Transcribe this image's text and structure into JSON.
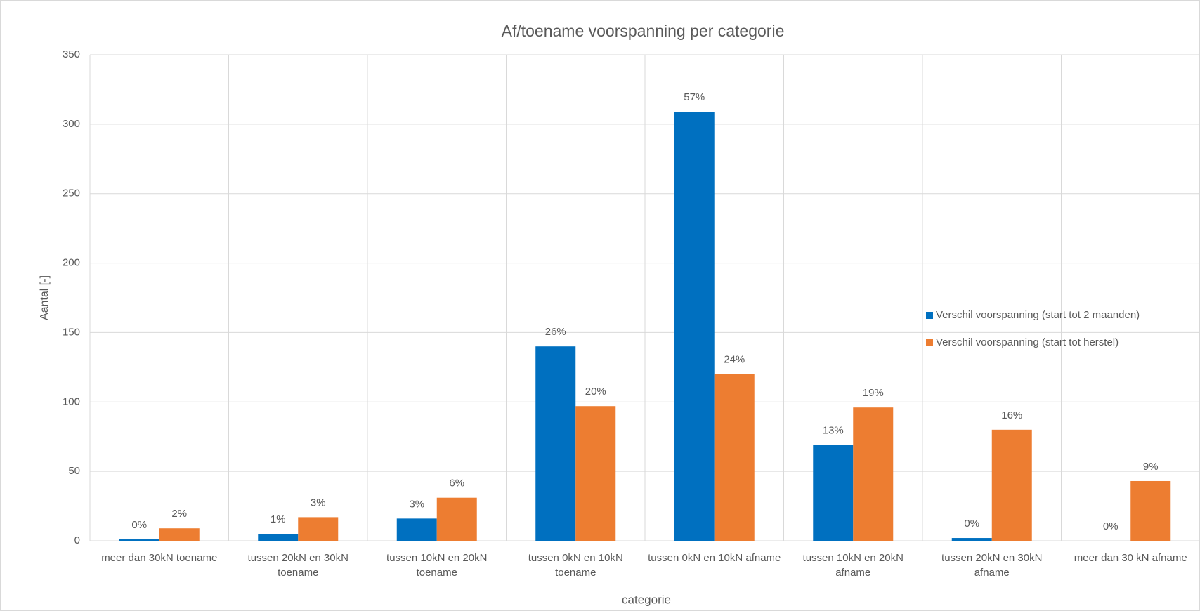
{
  "chart_data": {
    "type": "bar",
    "title": "Af/toename voorspanning per categorie",
    "x_label": "categorie",
    "y_label": "Aantal [-]",
    "categories": [
      "meer dan 30kN toename",
      "tussen 20kN en 30kN toename",
      "tussen 10kN en 20kN toename",
      "tussen 0kN en 10kN toename",
      "tussen 0kN en 10kN afname",
      "tussen 10kN en 20kN afname",
      "tussen 20kN en 30kN afname",
      "meer dan 30 kN afname"
    ],
    "series": [
      {
        "name": "Verschil voorspanning (start tot 2 maanden)",
        "color": "#0070c0",
        "values": [
          1,
          5,
          16,
          140,
          309,
          69,
          2,
          0
        ],
        "value_labels": [
          "0%",
          "1%",
          "3%",
          "26%",
          "57%",
          "13%",
          "0%",
          "0%"
        ]
      },
      {
        "name": "Verschil voorspanning (start tot herstel)",
        "color": "#ed7d31",
        "values": [
          9,
          17,
          31,
          97,
          120,
          96,
          80,
          43
        ],
        "value_labels": [
          "2%",
          "3%",
          "6%",
          "20%",
          "24%",
          "19%",
          "16%",
          "9%"
        ]
      }
    ],
    "ylim": [
      0,
      350
    ],
    "yticks": [
      0,
      50,
      100,
      150,
      200,
      250,
      300,
      350
    ],
    "grid": true,
    "legend": "right"
  }
}
